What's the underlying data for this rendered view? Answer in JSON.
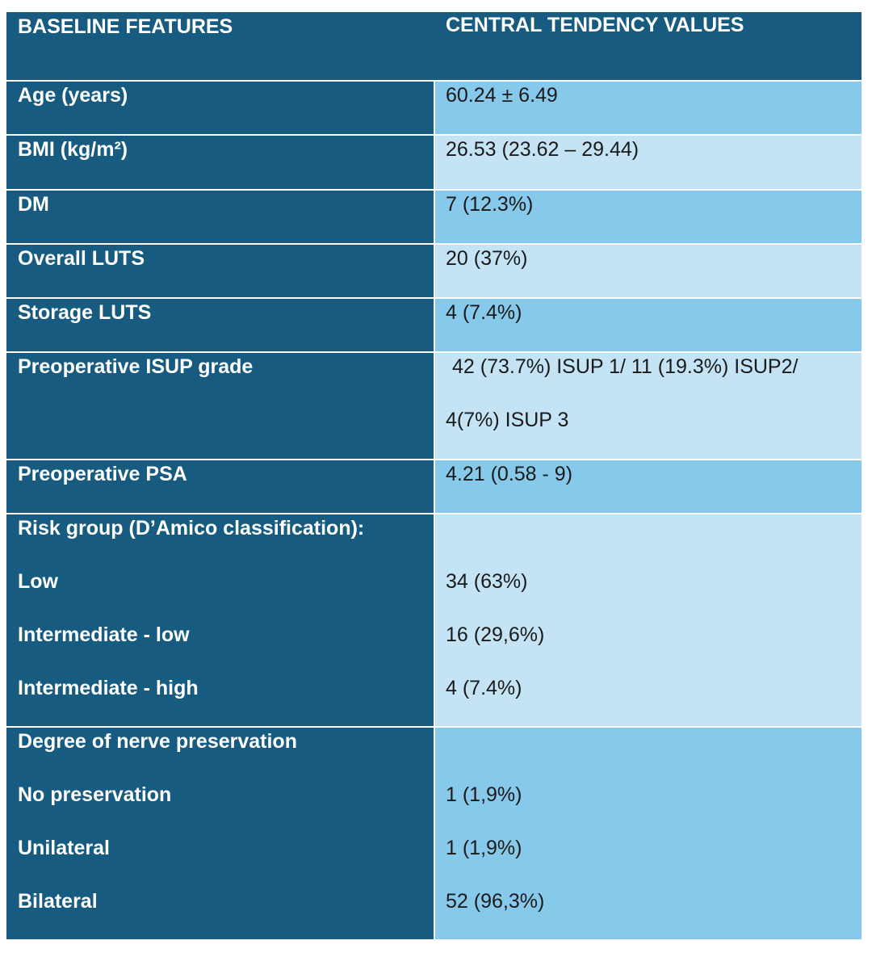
{
  "table": {
    "header": [
      "BASELINE FEATURES",
      "CENTRAL TENDENCY VALUES"
    ],
    "rows": [
      {
        "feature": "Age (years)",
        "value": "60.24 ± 6.49"
      },
      {
        "feature": "BMI (kg/m²)",
        "value": "26.53 (23.62 – 29.44)"
      },
      {
        "feature": "DM",
        "value": "7 (12.3%)"
      },
      {
        "feature": "Overall LUTS",
        "value": "20 (37%)"
      },
      {
        "feature": "Storage LUTS",
        "value": "4 (7.4%)"
      },
      {
        "feature": "Preoperative ISUP grade",
        "value": [
          "42 (73.7%) ISUP 1/ 11 (19.3%) ISUP2/",
          "4(7%) ISUP 3"
        ]
      },
      {
        "feature": "Preoperative PSA",
        "value": "4.21 (0.58 - 9)"
      },
      {
        "feature": "Risk group (D’Amico classification):",
        "items": [
          {
            "feature": "Low",
            "value": "34 (63%)"
          },
          {
            "feature": "Intermediate - low",
            "value": "16 (29,6%)"
          },
          {
            "feature": "Intermediate - high",
            "value": "4 (7.4%)"
          }
        ]
      },
      {
        "feature": "Degree of nerve preservation",
        "items": [
          {
            "feature": "No preservation",
            "value": "1 (1,9%)"
          },
          {
            "feature": "Unilateral",
            "value": "1 (1,9%)"
          },
          {
            "feature": "Bilateral",
            "value": "52 (96,3%)"
          }
        ]
      }
    ]
  }
}
